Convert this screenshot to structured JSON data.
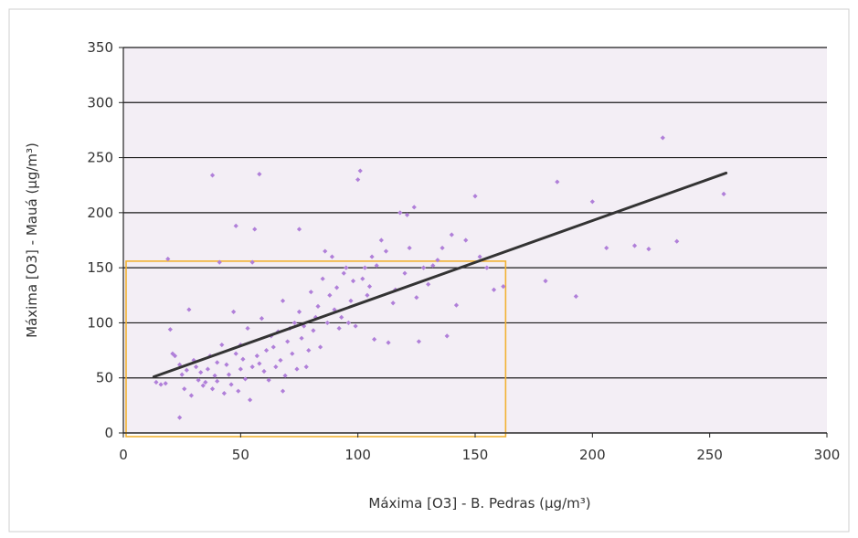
{
  "chart_data": {
    "type": "scatter",
    "title": "",
    "xlabel": "Máxima [O3] - B. Pedras (μg/m³)",
    "ylabel": "Máxima [O3] - Mauá (μg/m³)",
    "xlim": [
      0,
      300
    ],
    "ylim": [
      0,
      350
    ],
    "xticks": [
      "0",
      "50",
      "100",
      "150",
      "200",
      "250",
      "300"
    ],
    "yticks": [
      "0",
      "50",
      "100",
      "150",
      "200",
      "250",
      "300",
      "350"
    ],
    "grid": "horizontal",
    "legend": "none",
    "colors": {
      "points": "#b07fd9",
      "trendline": "#333333",
      "highlight_box": "#f2b233",
      "plot_background": "#f3eef5",
      "gridlines": "#1a1a1a"
    },
    "trendline": {
      "x": [
        13,
        257
      ],
      "y": [
        51,
        236
      ]
    },
    "highlight_region": {
      "x": [
        0,
        163
      ],
      "y": [
        0,
        156
      ]
    },
    "points": [
      [
        14,
        46
      ],
      [
        16,
        44
      ],
      [
        18,
        45
      ],
      [
        19,
        158
      ],
      [
        20,
        94
      ],
      [
        21,
        72
      ],
      [
        22,
        70
      ],
      [
        24,
        62
      ],
      [
        24,
        14
      ],
      [
        25,
        53
      ],
      [
        26,
        40
      ],
      [
        27,
        57
      ],
      [
        28,
        112
      ],
      [
        29,
        34
      ],
      [
        30,
        66
      ],
      [
        31,
        60
      ],
      [
        32,
        48
      ],
      [
        33,
        55
      ],
      [
        34,
        43
      ],
      [
        35,
        46
      ],
      [
        36,
        58
      ],
      [
        37,
        70
      ],
      [
        38,
        40
      ],
      [
        38,
        234
      ],
      [
        39,
        52
      ],
      [
        40,
        47
      ],
      [
        40,
        64
      ],
      [
        41,
        155
      ],
      [
        42,
        80
      ],
      [
        43,
        36
      ],
      [
        44,
        62
      ],
      [
        45,
        53
      ],
      [
        46,
        44
      ],
      [
        47,
        110
      ],
      [
        48,
        188
      ],
      [
        48,
        72
      ],
      [
        49,
        38
      ],
      [
        50,
        58
      ],
      [
        50,
        80
      ],
      [
        51,
        67
      ],
      [
        52,
        49
      ],
      [
        53,
        95
      ],
      [
        54,
        30
      ],
      [
        55,
        60
      ],
      [
        55,
        155
      ],
      [
        56,
        185
      ],
      [
        57,
        70
      ],
      [
        58,
        63
      ],
      [
        58,
        235
      ],
      [
        59,
        104
      ],
      [
        60,
        56
      ],
      [
        61,
        75
      ],
      [
        62,
        48
      ],
      [
        63,
        88
      ],
      [
        64,
        78
      ],
      [
        65,
        60
      ],
      [
        66,
        92
      ],
      [
        67,
        66
      ],
      [
        68,
        120
      ],
      [
        68,
        38
      ],
      [
        69,
        52
      ],
      [
        70,
        83
      ],
      [
        71,
        95
      ],
      [
        72,
        72
      ],
      [
        73,
        100
      ],
      [
        74,
        58
      ],
      [
        75,
        110
      ],
      [
        75,
        185
      ],
      [
        76,
        86
      ],
      [
        77,
        97
      ],
      [
        78,
        60
      ],
      [
        79,
        75
      ],
      [
        80,
        128
      ],
      [
        81,
        93
      ],
      [
        82,
        105
      ],
      [
        83,
        115
      ],
      [
        84,
        78
      ],
      [
        85,
        140
      ],
      [
        86,
        165
      ],
      [
        87,
        100
      ],
      [
        88,
        125
      ],
      [
        89,
        160
      ],
      [
        90,
        112
      ],
      [
        91,
        132
      ],
      [
        92,
        95
      ],
      [
        93,
        105
      ],
      [
        94,
        145
      ],
      [
        95,
        150
      ],
      [
        96,
        100
      ],
      [
        97,
        120
      ],
      [
        98,
        138
      ],
      [
        99,
        97
      ],
      [
        100,
        230
      ],
      [
        101,
        238
      ],
      [
        102,
        140
      ],
      [
        103,
        150
      ],
      [
        104,
        125
      ],
      [
        105,
        133
      ],
      [
        106,
        160
      ],
      [
        107,
        85
      ],
      [
        108,
        152
      ],
      [
        110,
        175
      ],
      [
        112,
        165
      ],
      [
        113,
        82
      ],
      [
        115,
        118
      ],
      [
        116,
        130
      ],
      [
        118,
        200
      ],
      [
        120,
        145
      ],
      [
        121,
        198
      ],
      [
        122,
        168
      ],
      [
        124,
        205
      ],
      [
        125,
        123
      ],
      [
        126,
        83
      ],
      [
        128,
        150
      ],
      [
        130,
        135
      ],
      [
        132,
        152
      ],
      [
        134,
        157
      ],
      [
        136,
        168
      ],
      [
        138,
        88
      ],
      [
        140,
        180
      ],
      [
        142,
        116
      ],
      [
        146,
        175
      ],
      [
        150,
        215
      ],
      [
        152,
        160
      ],
      [
        155,
        150
      ],
      [
        158,
        130
      ],
      [
        162,
        133
      ],
      [
        180,
        138
      ],
      [
        185,
        228
      ],
      [
        193,
        124
      ],
      [
        200,
        210
      ],
      [
        206,
        168
      ],
      [
        218,
        170
      ],
      [
        224,
        167
      ],
      [
        230,
        268
      ],
      [
        236,
        174
      ],
      [
        256,
        217
      ]
    ]
  }
}
